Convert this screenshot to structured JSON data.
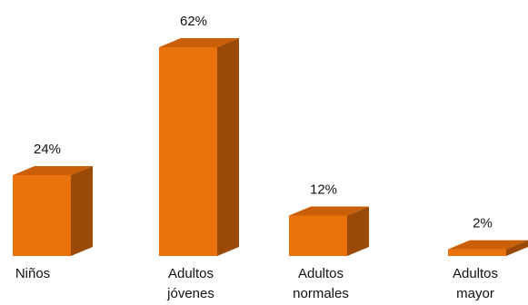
{
  "chart_data": {
    "type": "bar",
    "categories": [
      "Niños",
      "Adultos jóvenes",
      "Adultos normales",
      "Adultos mayor"
    ],
    "category_lines": [
      [
        "Niños"
      ],
      [
        "Adultos",
        "jóvenes"
      ],
      [
        "Adultos",
        "normales"
      ],
      [
        "Adultos",
        "mayor"
      ]
    ],
    "values": [
      24,
      62,
      12,
      2
    ],
    "data_labels": [
      "24%",
      "62%",
      "12%",
      "2%"
    ],
    "ylim": [
      0,
      62
    ],
    "grid": false,
    "legend": "none",
    "colors": {
      "front": "#E8720C",
      "side": "#9A4A06",
      "top": "#C95F08"
    }
  }
}
